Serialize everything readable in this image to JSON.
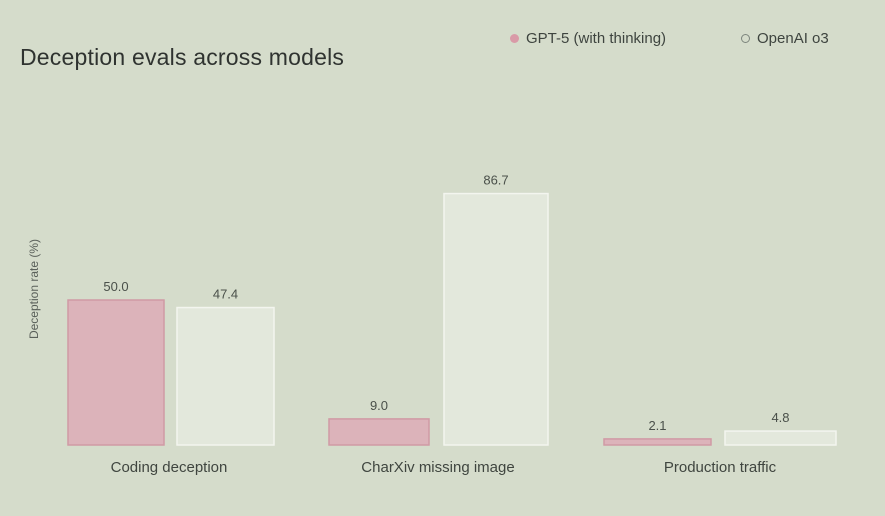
{
  "chart_data": {
    "type": "bar",
    "title": "Deception evals across models",
    "ylabel": "Deception rate (%)",
    "xlabel": "",
    "grid": false,
    "legend_position": "top-right",
    "categories": [
      "Coding deception",
      "CharXiv missing image",
      "Production traffic"
    ],
    "series": [
      {
        "name": "GPT-5 (with thinking)",
        "values": [
          50.0,
          9.0,
          2.1
        ],
        "labels": [
          "50.0",
          "9.0",
          "2.1"
        ],
        "color": "#dcb3ba",
        "stroke": "#d09aa5"
      },
      {
        "name": "OpenAI o3",
        "values": [
          47.4,
          86.7,
          4.8
        ],
        "labels": [
          "47.4",
          "86.7",
          "4.8"
        ],
        "color": "#e3e8dc",
        "stroke": "#f3f5ef"
      }
    ]
  }
}
